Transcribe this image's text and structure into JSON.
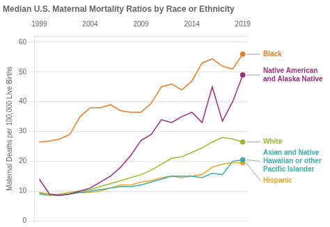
{
  "chart_data": {
    "type": "line",
    "title": "Median U.S. Maternal Mortality Ratios by Race or Ethnicity",
    "ylabel": "Maternal Deaths per 100,000 Live Births",
    "x": [
      1999,
      2000,
      2001,
      2002,
      2003,
      2004,
      2005,
      2006,
      2007,
      2008,
      2009,
      2010,
      2011,
      2012,
      2013,
      2014,
      2015,
      2016,
      2017,
      2018,
      2019
    ],
    "series": [
      {
        "name": "Black",
        "color": "#E87B2A",
        "values": [
          26.5,
          26.8,
          27.5,
          29.0,
          35.0,
          38.0,
          38.0,
          39.0,
          37.0,
          36.5,
          36.5,
          39.5,
          45.0,
          46.0,
          44.0,
          47.0,
          53.0,
          54.5,
          52.0,
          51.0,
          56.0
        ]
      },
      {
        "name": "Native American\nand Alaska Native",
        "color": "#9B2C7E",
        "values": [
          14.0,
          9.0,
          8.5,
          9.0,
          10.0,
          11.0,
          13.0,
          15.0,
          18.0,
          22.0,
          27.0,
          29.0,
          34.0,
          33.0,
          35.0,
          36.5,
          33.0,
          45.0,
          33.5,
          40.0,
          49.0
        ]
      },
      {
        "name": "White",
        "color": "#A0B532",
        "values": [
          9.5,
          8.5,
          9.0,
          9.5,
          10.0,
          10.5,
          11.5,
          12.5,
          13.5,
          14.5,
          15.5,
          17.0,
          19.0,
          21.0,
          21.5,
          23.0,
          24.5,
          26.5,
          28.0,
          27.5,
          26.5
        ]
      },
      {
        "name": "Asian and Native\nHawaiian or other\nPacific Islander",
        "color": "#3AADA8",
        "values": [
          9.0,
          8.5,
          8.5,
          9.0,
          9.5,
          10.0,
          10.5,
          11.0,
          11.5,
          11.5,
          12.0,
          13.0,
          14.0,
          15.0,
          15.0,
          15.0,
          14.5,
          16.0,
          15.5,
          20.0,
          20.5
        ]
      },
      {
        "name": "Hispanic",
        "color": "#E8A72A",
        "values": [
          9.5,
          9.0,
          8.5,
          9.0,
          9.5,
          9.5,
          10.0,
          11.0,
          12.0,
          12.0,
          13.0,
          13.5,
          14.5,
          15.0,
          14.5,
          15.0,
          15.5,
          18.0,
          19.0,
          19.5,
          19.5
        ]
      }
    ],
    "xlim": [
      1998.5,
      2019.5
    ],
    "xticks": [
      1999,
      2004,
      2009,
      2014,
      2019
    ],
    "ylim": [
      0,
      62
    ],
    "yticks": [
      0,
      10,
      20,
      30,
      40,
      50,
      60
    ],
    "grid": true
  }
}
